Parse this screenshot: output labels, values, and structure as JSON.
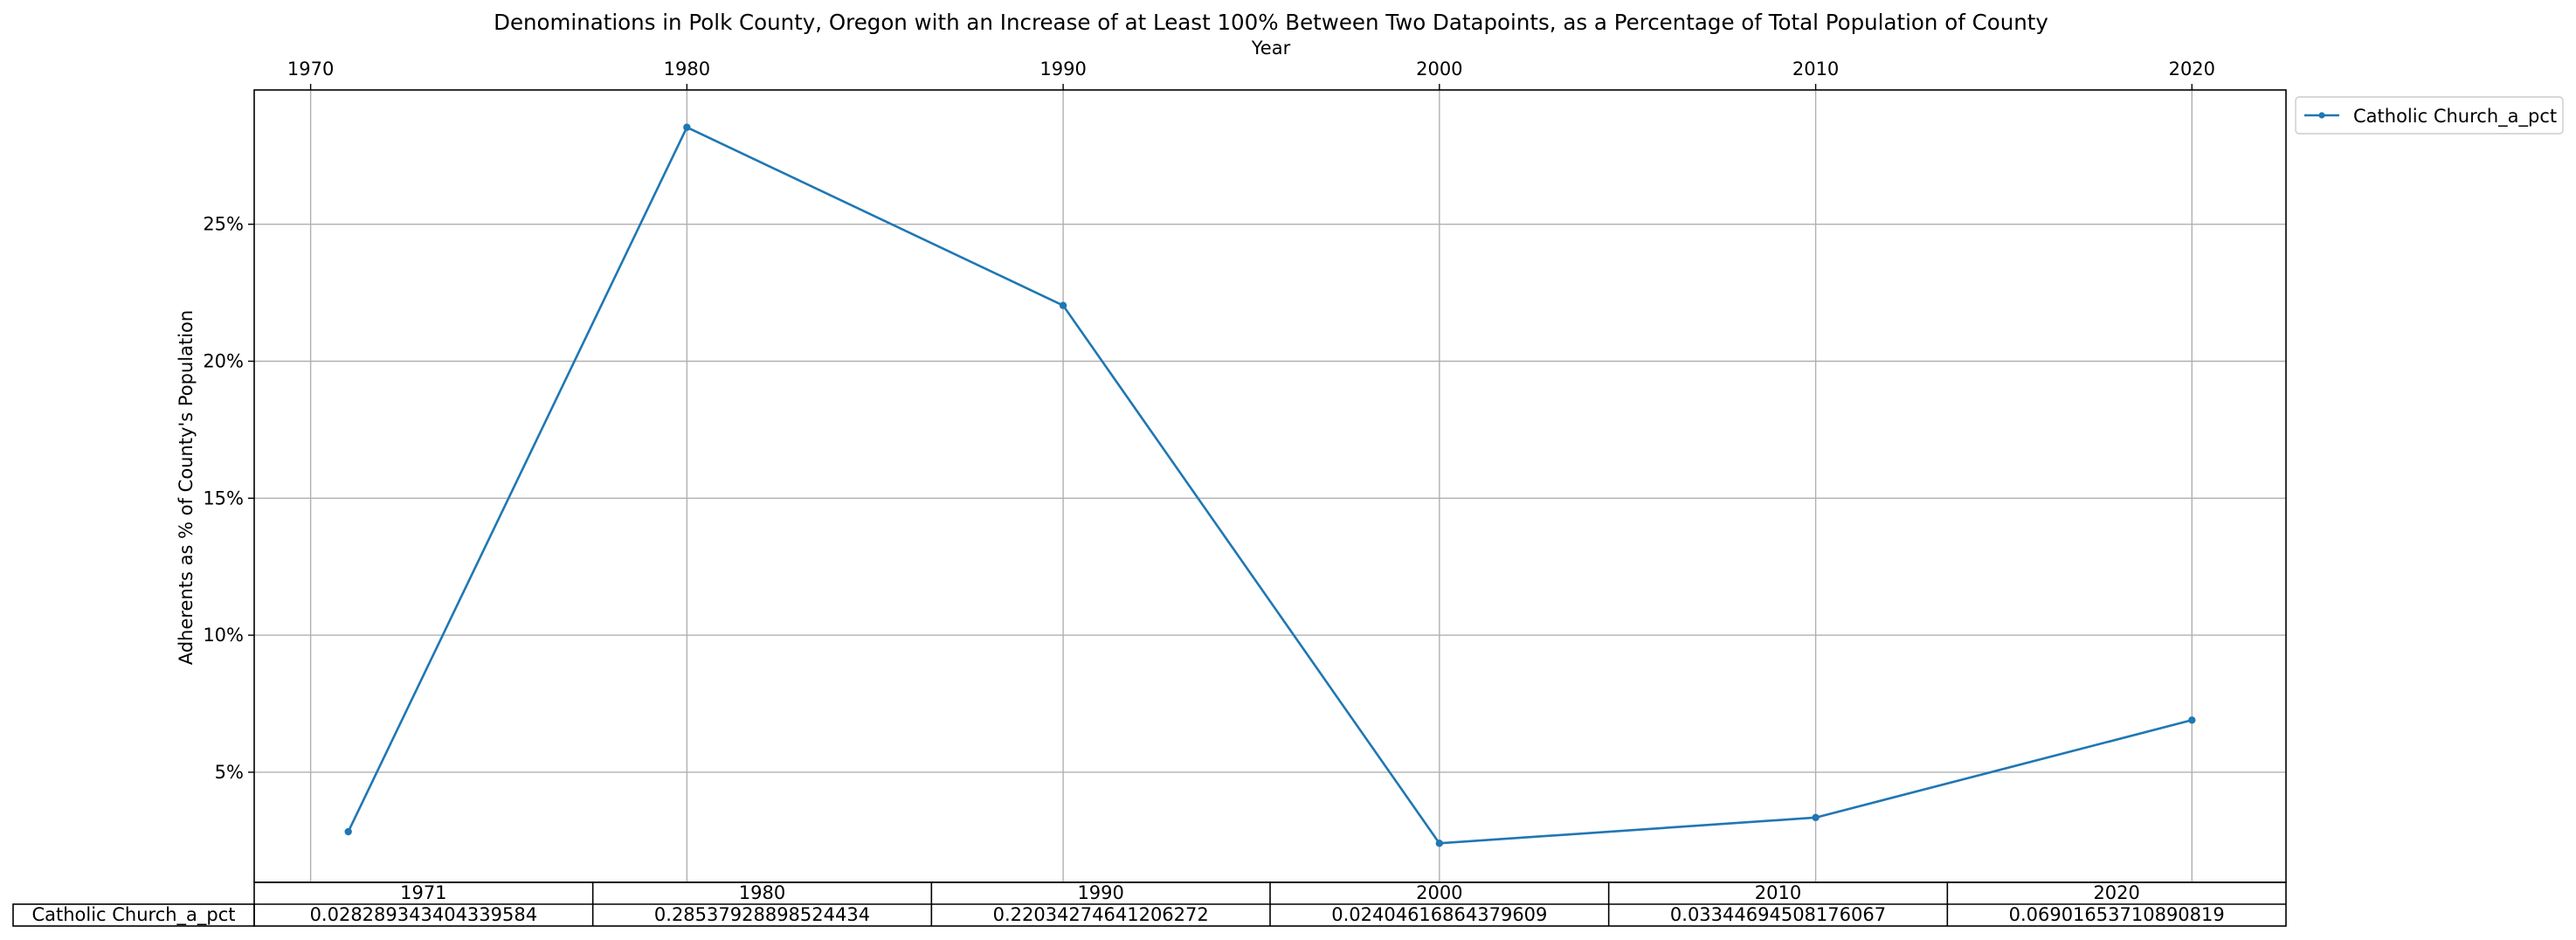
{
  "chart_data": {
    "type": "line",
    "title": "Denominations in Polk County, Oregon with an Increase of at Least 100% Between Two Datapoints, as a Percentage of Total Population of County",
    "xlabel": "Year",
    "ylabel": "Adherents as % of County's Population",
    "x_ticks": [
      "1970",
      "1980",
      "1990",
      "2000",
      "2010",
      "2020"
    ],
    "y_ticks": [
      "5%",
      "10%",
      "15%",
      "20%",
      "25%"
    ],
    "x_axis_position": "top",
    "xlim": [
      1968.5,
      2022.5
    ],
    "ylim": [
      0.0098,
      0.299
    ],
    "grid": true,
    "legend_placement": "outside-top-right",
    "colors": {
      "series": "#1f77b4"
    },
    "x": [
      1971,
      1980,
      1990,
      2000,
      2010,
      2020
    ],
    "series": [
      {
        "name": "Catholic Church_a_pct",
        "values": [
          0.028289343404339584,
          0.28537928898524434,
          0.22034274641206272,
          0.02404616864379609,
          0.03344694508176067,
          0.06901653710890819
        ]
      }
    ],
    "table": {
      "col_labels": [
        "1971",
        "1980",
        "1990",
        "2000",
        "2010",
        "2020"
      ],
      "row_label": "Catholic Church_a_pct",
      "cells": [
        "0.028289343404339584",
        "0.28537928898524434",
        "0.22034274641206272",
        "0.02404616864379609",
        "0.03344694508176067",
        "0.06901653710890819"
      ]
    }
  }
}
